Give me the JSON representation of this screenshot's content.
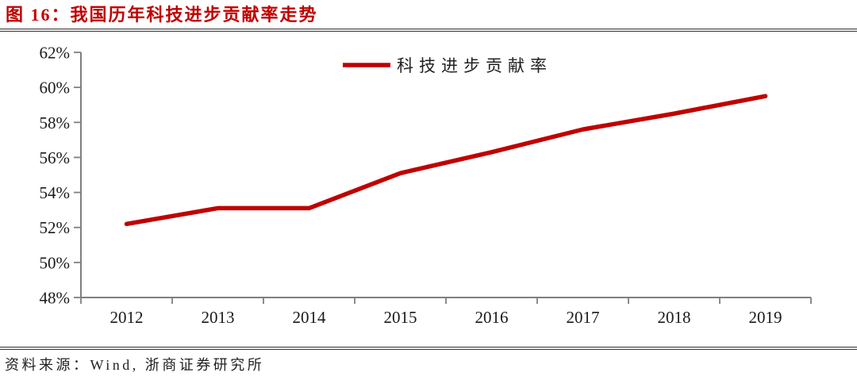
{
  "header": {
    "title": "图 16：我国历年科技进步贡献率走势"
  },
  "footer": {
    "source": "资料来源：Wind, 浙商证券研究所"
  },
  "colors": {
    "accent_red": "#c00000",
    "axis_gray": "#7f7f7f",
    "text_black": "#1a1a1a"
  },
  "chart_data": {
    "type": "line",
    "title": "图 16：我国历年科技进步贡献率走势",
    "categories": [
      "2012",
      "2013",
      "2014",
      "2015",
      "2016",
      "2017",
      "2018",
      "2019"
    ],
    "series": [
      {
        "name": "科技进步贡献率",
        "color": "#c00000",
        "values": [
          52.2,
          53.1,
          53.1,
          55.1,
          56.3,
          57.6,
          58.5,
          59.5
        ]
      }
    ],
    "xlabel": "",
    "ylabel": "",
    "ylim": [
      48,
      62
    ],
    "ytick_step": 2,
    "ytick_suffix": "%",
    "grid": false,
    "legend_position": "top-center",
    "source": "资料来源：Wind, 浙商证券研究所"
  }
}
